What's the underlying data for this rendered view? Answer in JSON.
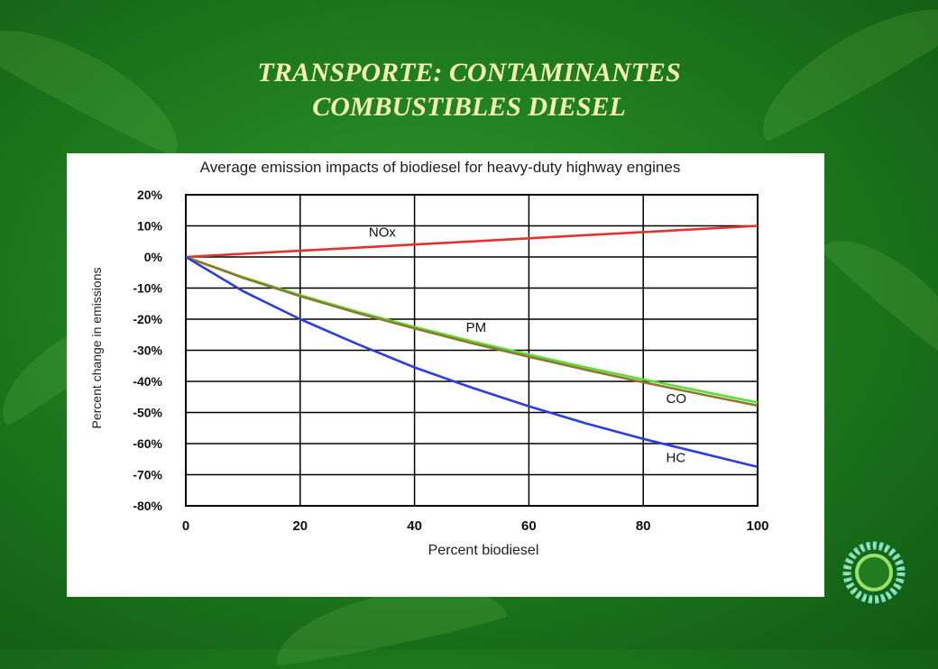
{
  "slide": {
    "title_line1": "TRANSPORTE: CONTAMINANTES",
    "title_line2": "COMBUSTIBLES DIESEL"
  },
  "colors": {
    "background": "#1f7d1f",
    "title": "#f4f0b0",
    "nox": "#e8312a",
    "pm": "#5fdc3c",
    "co": "#8a7a2a",
    "hc": "#2b3fe0"
  },
  "chart_data": {
    "type": "line",
    "title": "Average emission impacts of biodiesel for heavy-duty highway engines",
    "xlabel": "Percent biodiesel",
    "ylabel": "Percent change in emissions",
    "xlim": [
      0,
      100
    ],
    "ylim": [
      -80,
      20
    ],
    "grid": true,
    "x_ticks": [
      "0",
      "20",
      "40",
      "60",
      "80",
      "100"
    ],
    "y_ticks": [
      "20%",
      "10%",
      "0%",
      "-10%",
      "-20%",
      "-30%",
      "-40%",
      "-50%",
      "-60%",
      "-70%",
      "-80%"
    ],
    "x": [
      0,
      10,
      20,
      30,
      40,
      50,
      60,
      70,
      80,
      90,
      100
    ],
    "series": [
      {
        "name": "NOx",
        "color": "#e8312a",
        "values": [
          0,
          1,
          2,
          3,
          4,
          5,
          6,
          7,
          8,
          9,
          10
        ]
      },
      {
        "name": "PM",
        "color": "#5fdc3c",
        "values": [
          0,
          -6.5,
          -12.3,
          -17.6,
          -22.5,
          -27.1,
          -31.4,
          -35.5,
          -39.4,
          -43.1,
          -46.8
        ]
      },
      {
        "name": "CO",
        "color": "#8a7a2a",
        "values": [
          0,
          -6.7,
          -12.6,
          -18,
          -23,
          -27.7,
          -32.1,
          -36.3,
          -40.3,
          -44.1,
          -47.8
        ]
      },
      {
        "name": "HC",
        "color": "#2b3fe0",
        "values": [
          0,
          -11,
          -20,
          -28,
          -35.5,
          -42,
          -48,
          -53.5,
          -58.5,
          -63,
          -67.5
        ]
      }
    ],
    "labels": [
      {
        "text": "NOx",
        "x": 32,
        "y": 6.5
      },
      {
        "text": "PM",
        "x": 49,
        "y": -24
      },
      {
        "text": "CO",
        "x": 84,
        "y": -47
      },
      {
        "text": "HC",
        "x": 84,
        "y": -66
      }
    ]
  }
}
